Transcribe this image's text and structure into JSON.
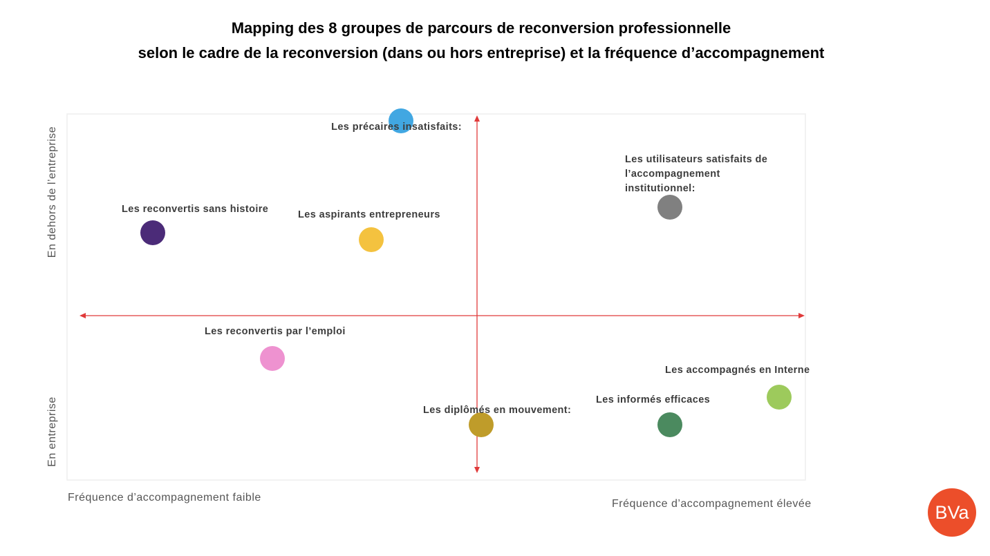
{
  "header": {
    "title_lines": [
      "Mapping des 8 groupes de parcours de reconversion professionnelle",
      "selon le cadre de la reconversion (dans ou hors entreprise) et la fréquence d’accompagnement"
    ]
  },
  "axes": {
    "y_top": "En dehors de l’entreprise",
    "y_bottom": "En entreprise",
    "x_left": "Fréquence d’accompagnement  faible",
    "x_right": "Fréquence d’accompagnement  élevée"
  },
  "nodes": [
    {
      "lines": [
        "Les précaires insatisfaits:"
      ],
      "color": "#41a7e2"
    },
    {
      "lines": [
        "Les utilisateurs satisfaits de",
        "l’accompagnement",
        "institutionnel:"
      ],
      "color": "#808080"
    },
    {
      "lines": [
        "Les reconvertis sans histoire"
      ],
      "color": "#4b2b78"
    },
    {
      "lines": [
        "Les aspirants entrepreneurs"
      ],
      "color": "#f4c23f"
    },
    {
      "lines": [
        "Les reconvertis par l’emploi"
      ],
      "color": "#ee92d0"
    },
    {
      "lines": [
        "Les accompagnés en Interne"
      ],
      "color": "#9dca5c"
    },
    {
      "lines": [
        "Les informés efficaces"
      ],
      "color": "#4b8a5f"
    },
    {
      "lines": [
        "Les diplômés en mouvement:"
      ],
      "color": "#bf9c2a"
    }
  ],
  "logo": {
    "text": "BVa"
  }
}
